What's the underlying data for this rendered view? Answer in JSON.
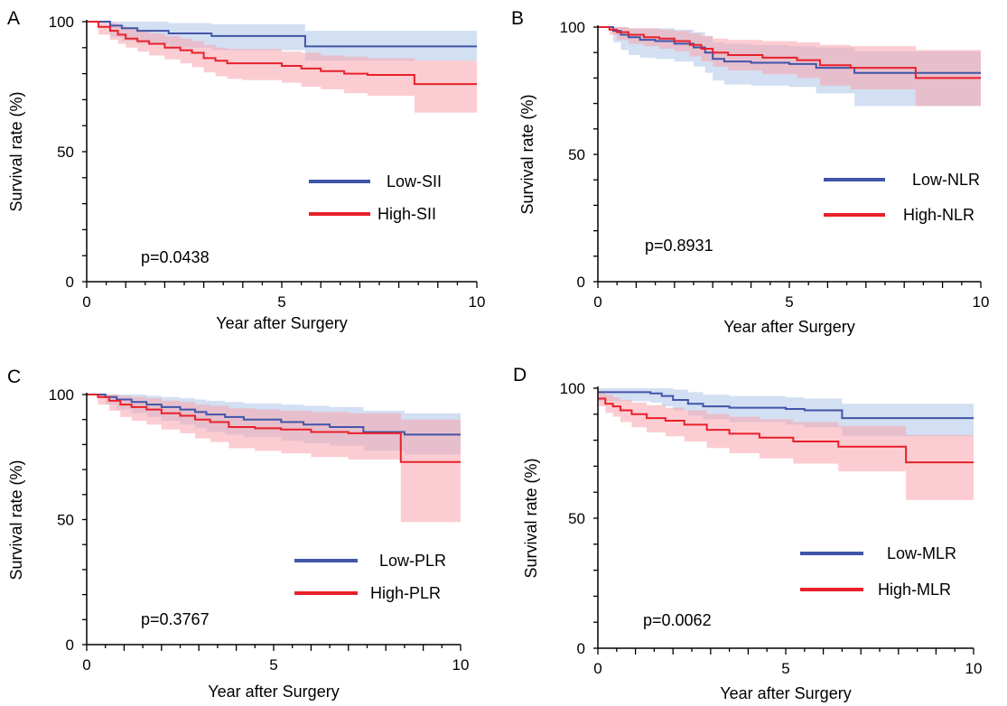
{
  "colors": {
    "low": "#4055a8",
    "high": "#e8202a",
    "low_band": "#aec4e8",
    "high_band": "#f7a4ad"
  },
  "chart_data": [
    {
      "type": "line",
      "panel": "A",
      "xlabel": "Year after Surgery",
      "ylabel": "Survival rate (%)",
      "xlim": [
        0,
        10
      ],
      "ylim": [
        0,
        100
      ],
      "xticks": [
        0,
        5,
        10
      ],
      "yticks": [
        0,
        50,
        100
      ],
      "p_value": "p=0.0438",
      "series": [
        {
          "name": "Low-SII",
          "role": "low",
          "x": [
            0,
            0.6,
            0.9,
            1.3,
            2.1,
            3.2,
            5.6,
            10
          ],
          "y": [
            100,
            98.5,
            97.5,
            96.5,
            95.5,
            94.5,
            90.5,
            90.5
          ],
          "lower": [
            100,
            94,
            92.5,
            91.5,
            90,
            89,
            85,
            84
          ],
          "upper": [
            100,
            100,
            100,
            100,
            99.5,
            99,
            96.5,
            96.5
          ]
        },
        {
          "name": "High-SII",
          "role": "high",
          "x": [
            0,
            0.3,
            0.6,
            0.8,
            1.0,
            1.3,
            1.6,
            2.0,
            2.4,
            2.7,
            3.0,
            3.3,
            3.6,
            4.0,
            5.0,
            5.5,
            6.0,
            6.6,
            7.2,
            8.4,
            10
          ],
          "y": [
            100,
            98,
            96.5,
            95,
            93.5,
            92.5,
            91.5,
            90,
            89,
            88,
            86,
            85,
            84,
            84,
            83,
            82,
            81,
            80,
            79.5,
            76,
            76
          ],
          "lower": [
            100,
            95,
            93,
            91.5,
            90,
            88.5,
            87,
            85.5,
            84,
            82.5,
            80.5,
            79,
            78,
            77.5,
            76.5,
            75,
            74,
            72.5,
            71.5,
            65,
            65
          ],
          "upper": [
            100,
            100,
            99.5,
            98.5,
            97.5,
            96.5,
            95.5,
            94.5,
            93.5,
            92.5,
            91,
            90,
            89.5,
            89.5,
            88.5,
            88,
            87,
            86.5,
            86,
            85,
            85
          ]
        }
      ]
    },
    {
      "type": "line",
      "panel": "B",
      "xlabel": "Year after Surgery",
      "ylabel": "Survival  rate (%)",
      "xlim": [
        0,
        10
      ],
      "ylim": [
        0,
        100
      ],
      "xticks": [
        0,
        5,
        10
      ],
      "yticks": [
        0,
        50,
        100
      ],
      "p_value": "p=0.8931",
      "series": [
        {
          "name": "Low-NLR",
          "role": "low",
          "x": [
            0,
            0.4,
            0.6,
            0.8,
            1.1,
            1.5,
            2.0,
            2.5,
            2.8,
            3.0,
            3.3,
            4.0,
            5.0,
            5.7,
            6.7,
            8.3,
            10
          ],
          "y": [
            100,
            98.5,
            97,
            96,
            95,
            94.5,
            93.5,
            92,
            90,
            87.5,
            86.5,
            86,
            85.5,
            84,
            82,
            82,
            82
          ],
          "lower": [
            100,
            94,
            91,
            89,
            88,
            87.5,
            86.5,
            84.5,
            82,
            79,
            77.5,
            77,
            76.5,
            74,
            69,
            69,
            69
          ],
          "upper": [
            100,
            100,
            100,
            99.5,
            99.5,
            99.5,
            99,
            98,
            96.5,
            94,
            93.5,
            93,
            92.5,
            92,
            90.5,
            90.5,
            90.5
          ]
        },
        {
          "name": "High-NLR",
          "role": "high",
          "x": [
            0,
            0.3,
            0.5,
            0.8,
            1.2,
            1.6,
            2.0,
            2.4,
            2.7,
            3.0,
            3.4,
            4.3,
            5.2,
            5.8,
            6.6,
            8.3,
            10
          ],
          "y": [
            100,
            99,
            98,
            97,
            96,
            95.5,
            94.5,
            93,
            91.5,
            90,
            89,
            88,
            87,
            85,
            84,
            80,
            80
          ],
          "lower": [
            100,
            97,
            95,
            93.5,
            92.5,
            91.5,
            90.5,
            88.5,
            86.5,
            84.5,
            83,
            81.5,
            80,
            77,
            75.5,
            69,
            69
          ],
          "upper": [
            100,
            100,
            100,
            99.5,
            99.5,
            99,
            98.5,
            97.5,
            96.5,
            95.5,
            95,
            94.5,
            94,
            93,
            92.5,
            91,
            91
          ]
        }
      ]
    },
    {
      "type": "line",
      "panel": "C",
      "xlabel": "Year after Surgery",
      "ylabel": "Survival rate (%)",
      "xlim": [
        0,
        10
      ],
      "ylim": [
        0,
        100
      ],
      "xticks": [
        0,
        5,
        10
      ],
      "yticks": [
        0,
        50,
        100
      ],
      "p_value": "p=0.3767",
      "series": [
        {
          "name": "Low-PLR",
          "role": "low",
          "x": [
            0,
            0.5,
            0.8,
            1.2,
            1.6,
            2.0,
            2.5,
            2.9,
            3.2,
            3.7,
            4.2,
            5.2,
            5.8,
            6.5,
            7.4,
            8.5,
            10
          ],
          "y": [
            100,
            99,
            98,
            97,
            96,
            95,
            94,
            93,
            92,
            91,
            90,
            89,
            88,
            87,
            85,
            84,
            84
          ],
          "lower": [
            100,
            96,
            94,
            92.5,
            91,
            89.5,
            88,
            86.5,
            85,
            84,
            83,
            81.5,
            80.5,
            79.5,
            77.5,
            76,
            76
          ],
          "upper": [
            100,
            100,
            100,
            100,
            99.5,
            99,
            98.5,
            98,
            97.5,
            97,
            96.5,
            96,
            95.5,
            95,
            93.5,
            92.5,
            92.5
          ]
        },
        {
          "name": "High-PLR",
          "role": "high",
          "x": [
            0,
            0.3,
            0.6,
            0.9,
            1.2,
            1.6,
            2.0,
            2.5,
            2.9,
            3.3,
            3.8,
            4.5,
            5.2,
            6.0,
            7.0,
            8.4,
            10
          ],
          "y": [
            100,
            99,
            97.5,
            96,
            95,
            94,
            92.5,
            91.5,
            90,
            89,
            87,
            86.5,
            86,
            85,
            84.5,
            73,
            73
          ],
          "lower": [
            100,
            96,
            93.5,
            91,
            89.5,
            88,
            86,
            84.5,
            82.5,
            81,
            78.5,
            77.5,
            76.5,
            75,
            74,
            49,
            49
          ],
          "upper": [
            100,
            100,
            100,
            99.5,
            99,
            98.5,
            97.5,
            97,
            96,
            95.5,
            94.5,
            94,
            93.5,
            93,
            92.5,
            90,
            90
          ]
        }
      ]
    },
    {
      "type": "line",
      "panel": "D",
      "xlabel": "Year after Surgery",
      "ylabel": "Survival rate (%)",
      "xlim": [
        0,
        10
      ],
      "ylim": [
        0,
        100
      ],
      "xticks": [
        0,
        5,
        10
      ],
      "yticks": [
        0,
        50,
        100
      ],
      "p_value": "p=0.0062",
      "series": [
        {
          "name": "Low-MLR",
          "role": "low",
          "x": [
            0,
            1.4,
            1.7,
            2.0,
            2.4,
            2.8,
            3.5,
            5.0,
            5.5,
            6.5,
            10
          ],
          "y": [
            98.5,
            98,
            97,
            95.5,
            94,
            93,
            92.5,
            92,
            91.5,
            88.5,
            88.5
          ],
          "lower": [
            95,
            94.5,
            93,
            91.5,
            89.5,
            88,
            87,
            86,
            85,
            81.5,
            81.5
          ],
          "upper": [
            100,
            100,
            100,
            99.5,
            98.5,
            97.5,
            97,
            96.5,
            96,
            94,
            94
          ]
        },
        {
          "name": "High-MLR",
          "role": "high",
          "x": [
            0,
            0.2,
            0.4,
            0.6,
            0.9,
            1.3,
            1.8,
            2.3,
            2.9,
            3.5,
            4.3,
            5.2,
            6.4,
            8.2,
            10
          ],
          "y": [
            96,
            94,
            93,
            91.5,
            90,
            88.5,
            87.5,
            86,
            84,
            82.5,
            81,
            79.5,
            77.5,
            71.5,
            71.5
          ],
          "lower": [
            93,
            90.5,
            89,
            87,
            85,
            83,
            81.5,
            79.5,
            77,
            75,
            73,
            71,
            68,
            57,
            57
          ],
          "upper": [
            99,
            97.5,
            96.5,
            95.5,
            94.5,
            93.5,
            92.5,
            91.5,
            90,
            89,
            88,
            87,
            85.5,
            82,
            82
          ]
        }
      ]
    }
  ]
}
